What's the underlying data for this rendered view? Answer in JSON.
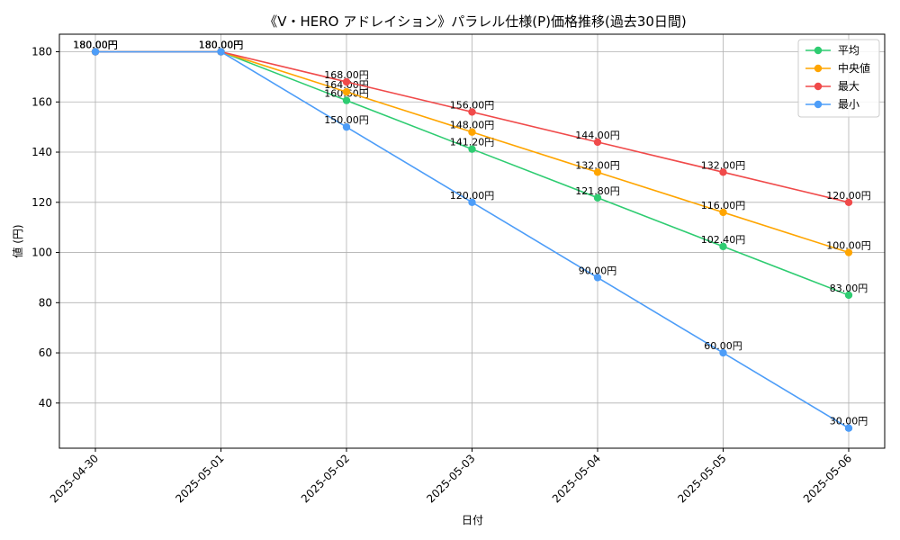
{
  "chart_data": {
    "type": "line",
    "title": "《V・HERO アドレイション》パラレル仕様(P)価格推移(過去30日間)",
    "xlabel": "日付",
    "ylabel": "値 (円)",
    "x": [
      "2025-04-30",
      "2025-05-01",
      "2025-05-02",
      "2025-05-03",
      "2025-05-04",
      "2025-05-05",
      "2025-05-06"
    ],
    "ylim": [
      22,
      187
    ],
    "yticks": [
      40,
      60,
      80,
      100,
      120,
      140,
      160,
      180
    ],
    "grid": true,
    "legend_position": "top-right",
    "series": [
      {
        "name": "平均",
        "color": "#2ecc71",
        "values": [
          180,
          180,
          160.6,
          141.2,
          121.8,
          102.4,
          83
        ],
        "labels": [
          "180.00円",
          "180.00円",
          "160.60円",
          "141.20円",
          "121.80円",
          "102.40円",
          "83.00円"
        ]
      },
      {
        "name": "中央値",
        "color": "#ffa500",
        "values": [
          180,
          180,
          164,
          148,
          132,
          116,
          100
        ],
        "labels": [
          "180.00円",
          "180.00円",
          "164.00円",
          "148.00円",
          "132.00円",
          "116.00円",
          "100.00円"
        ]
      },
      {
        "name": "最大",
        "color": "#f04a4a",
        "values": [
          180,
          180,
          168,
          156,
          144,
          132,
          120
        ],
        "labels": [
          "180.00円",
          "180.00円",
          "168.00円",
          "156.00円",
          "144.00円",
          "132.00円",
          "120.00円"
        ]
      },
      {
        "name": "最小",
        "color": "#4d9df8",
        "values": [
          180,
          180,
          150,
          120,
          90,
          60,
          30
        ],
        "labels": [
          "180.00円",
          "180.00円",
          "150.00円",
          "120.00円",
          "90.00円",
          "60.00円",
          "30.00円"
        ]
      }
    ]
  }
}
